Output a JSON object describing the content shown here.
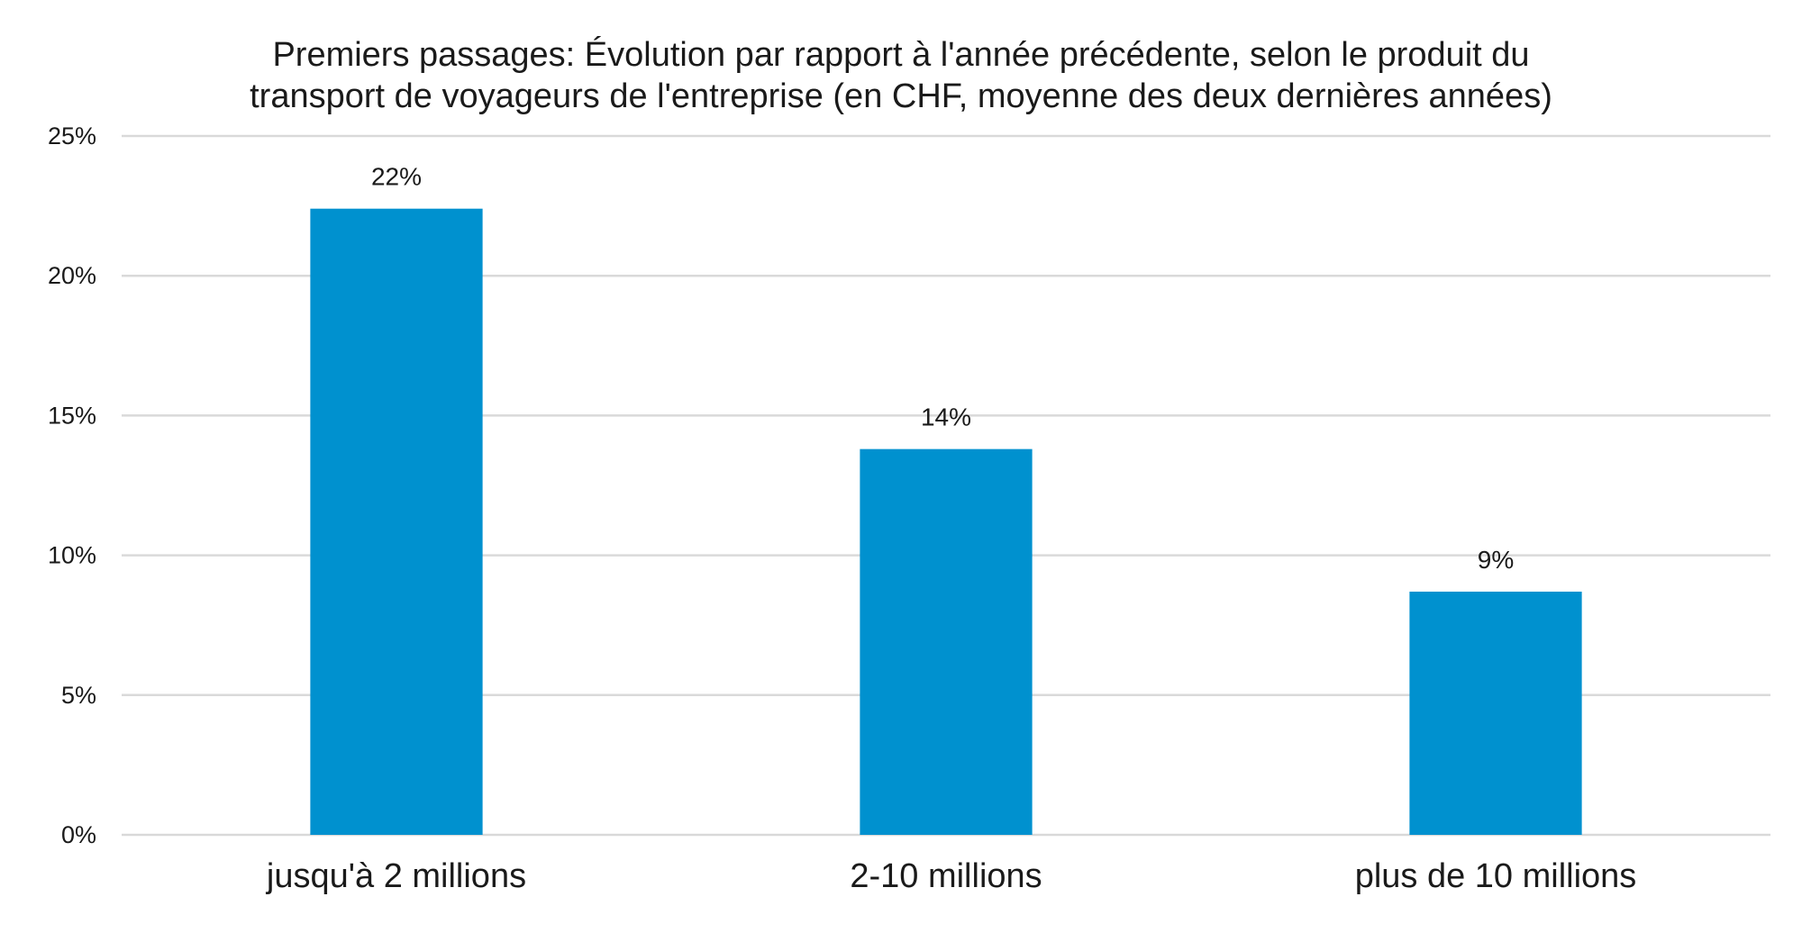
{
  "chart_data": {
    "type": "bar",
    "title": "Premiers passages: Évolution par rapport à l'année précédente, selon le produit du transport de voyageurs de l'entreprise (en CHF, moyenne des deux dernières années)",
    "title_lines": [
      "Premiers passages: Évolution par rapport à l'année précédente, selon le produit du",
      "transport de voyageurs de l'entreprise (en CHF, moyenne des deux dernières années)"
    ],
    "categories": [
      "jusqu'à 2 millions",
      "2-10 millions",
      "plus de 10 millions"
    ],
    "values": [
      22.4,
      13.8,
      8.7
    ],
    "data_labels": [
      "22%",
      "14%",
      "9%"
    ],
    "xlabel": "",
    "ylabel": "",
    "ylim": [
      0,
      25
    ],
    "yticks": [
      0,
      5,
      10,
      15,
      20,
      25
    ],
    "ytick_labels": [
      "0%",
      "5%",
      "10%",
      "15%",
      "20%",
      "25%"
    ],
    "grid": true,
    "legend": "none",
    "bar_color": "#0091CF",
    "grid_color": "#D9D9D9"
  }
}
